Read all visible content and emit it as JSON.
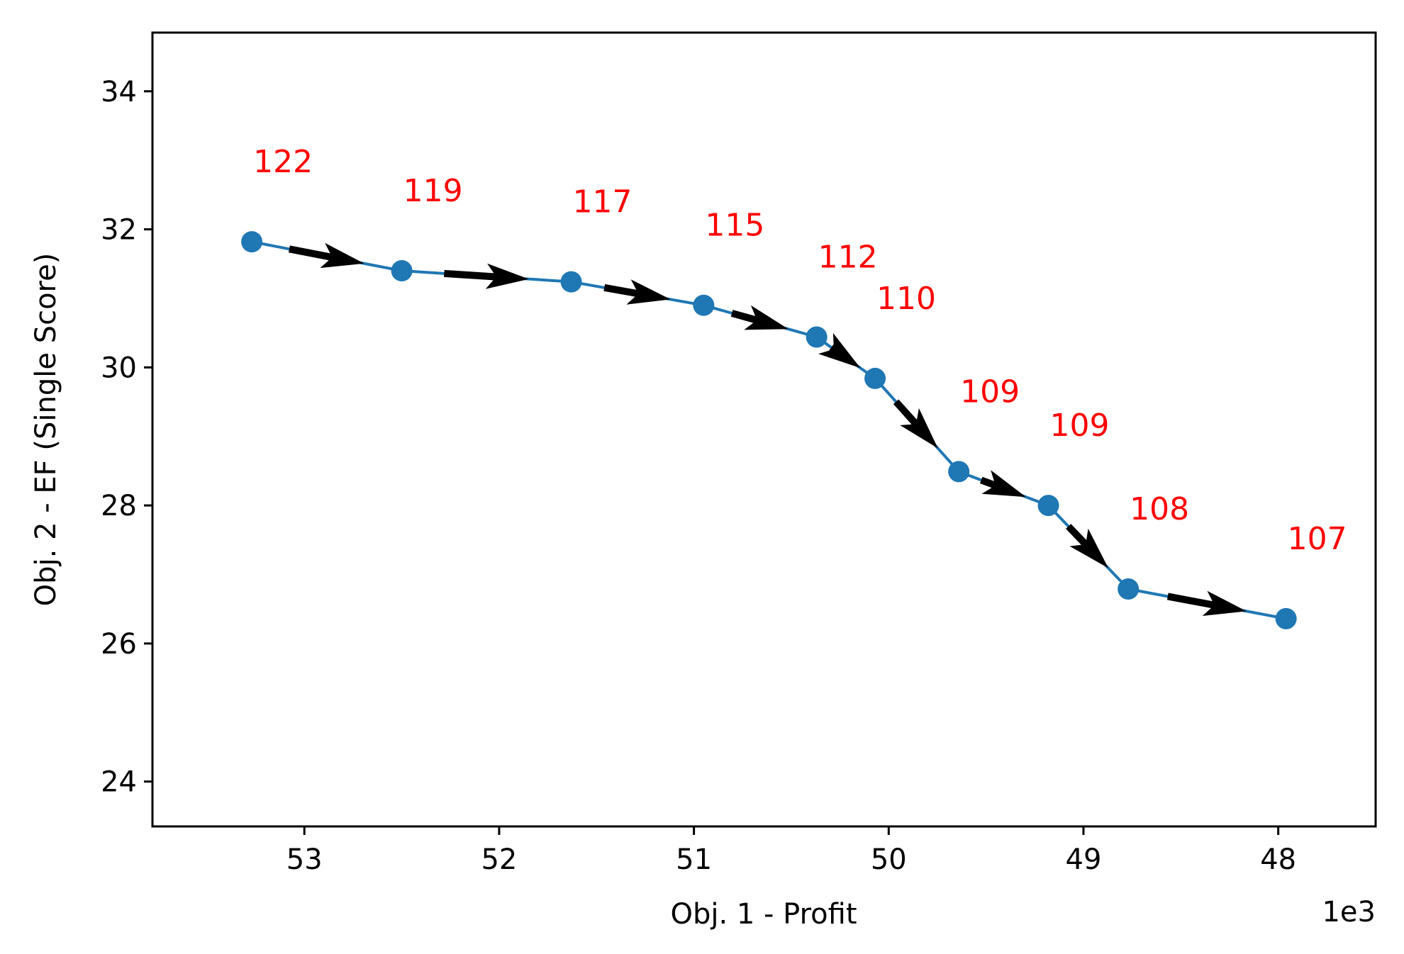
{
  "chart_data": {
    "type": "line",
    "xlabel": "Obj. 1 - Profit",
    "ylabel": "Obj. 2 - EF (Single Score)",
    "x_offset_label": "1e3",
    "x_ticks": [
      53,
      52,
      51,
      50,
      49,
      48
    ],
    "x_tick_labels": [
      "53",
      "52",
      "51",
      "50",
      "49",
      "48"
    ],
    "y_ticks": [
      24,
      26,
      28,
      30,
      32,
      34
    ],
    "y_tick_labels": [
      "24",
      "26",
      "28",
      "30",
      "32",
      "34"
    ],
    "xlim": [
      53.78,
      47.5
    ],
    "ylim": [
      23.35,
      34.85
    ],
    "x_inverted": true,
    "grid": false,
    "series": [
      {
        "x": [
          53.27,
          52.5,
          51.63,
          50.95,
          50.37,
          50.07,
          49.64,
          49.18,
          48.77,
          47.96
        ],
        "y": [
          31.82,
          31.4,
          31.24,
          30.9,
          30.44,
          29.84,
          28.49,
          28.0,
          26.79,
          26.36
        ],
        "labels": [
          "122",
          "119",
          "117",
          "115",
          "112",
          "110",
          "109",
          "109",
          "108",
          "107"
        ]
      }
    ],
    "colors": {
      "line": "#1f77b4",
      "marker": "#1f77b4",
      "arrow": "#000000",
      "point_label": "#ff0000"
    }
  }
}
